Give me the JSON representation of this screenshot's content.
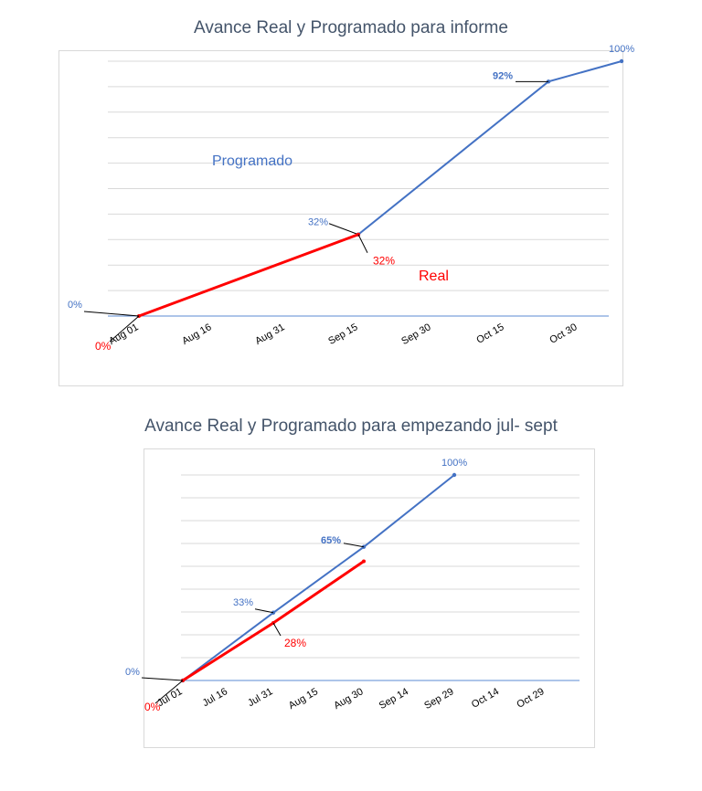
{
  "colors": {
    "programado": "#4472c4",
    "real": "#ff0000",
    "title": "#44546a",
    "grid": "#d9d9d9"
  },
  "chart_data": [
    {
      "type": "line",
      "title": "Avance Real y Programado para informe",
      "x_type": "date",
      "x_ticks": [
        "Aug 01",
        "Aug 16",
        "Aug 31",
        "Sep 15",
        "Sep 30",
        "Oct 15",
        "Oct 30"
      ],
      "ylim": [
        0,
        100
      ],
      "grid": true,
      "series_labels": {
        "programado": "Programado",
        "real": "Real"
      },
      "series": [
        {
          "key": "programado",
          "points": [
            {
              "x": "Sep 15",
              "y": 32,
              "label": "32%"
            },
            {
              "x": "Oct 24",
              "y": 92,
              "label": "92%",
              "bold": true
            },
            {
              "x": "Nov 08",
              "y": 100,
              "label": "100%"
            }
          ]
        },
        {
          "key": "real",
          "points": [
            {
              "x": "Aug 01",
              "y": 0,
              "label": "0%"
            },
            {
              "x": "Sep 15",
              "y": 32,
              "label": "32%"
            }
          ]
        }
      ],
      "start_label": "0%"
    },
    {
      "type": "line",
      "title": "Avance Real y Programado para empezando jul- sept",
      "x_type": "date",
      "x_ticks": [
        "Jul 01",
        "Jul 16",
        "Jul 31",
        "Aug 15",
        "Aug 30",
        "Sep 14",
        "Sep 29",
        "Oct 14",
        "Oct 29"
      ],
      "ylim": [
        0,
        100
      ],
      "grid": true,
      "series": [
        {
          "key": "programado",
          "points": [
            {
              "x": "Jul 01",
              "y": 0,
              "label": "0%"
            },
            {
              "x": "Jul 31",
              "y": 33,
              "label": "33%"
            },
            {
              "x": "Aug 30",
              "y": 65,
              "label": "65%",
              "bold": true
            },
            {
              "x": "Sep 29",
              "y": 100,
              "label": "100%"
            }
          ]
        },
        {
          "key": "real",
          "points": [
            {
              "x": "Jul 01",
              "y": 0,
              "label": "0%"
            },
            {
              "x": "Jul 31",
              "y": 28,
              "label": "28%"
            },
            {
              "x": "Aug 30",
              "y": 58
            }
          ]
        }
      ]
    }
  ]
}
